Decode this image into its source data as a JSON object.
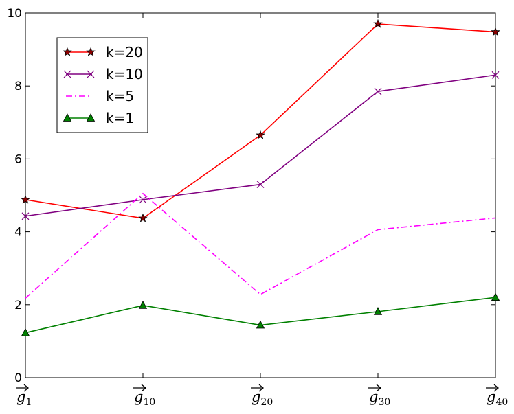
{
  "chart_data": {
    "type": "line",
    "categories": [
      {
        "base": "g",
        "sub": "1"
      },
      {
        "base": "g",
        "sub": "10"
      },
      {
        "base": "g",
        "sub": "20"
      },
      {
        "base": "g",
        "sub": "30"
      },
      {
        "base": "g",
        "sub": "40"
      }
    ],
    "ylim": [
      0,
      10
    ],
    "yticks": [
      "0",
      "2",
      "4",
      "6",
      "8",
      "10"
    ],
    "grid": false,
    "legend_position": "upper-left",
    "series": [
      {
        "name": "k=20",
        "color": "#ff0000",
        "marker": "star",
        "marker_color": "#8b0000",
        "line": "solid",
        "values": [
          4.88,
          4.37,
          6.65,
          9.7,
          9.48
        ]
      },
      {
        "name": "k=10",
        "color": "#800080",
        "marker": "x",
        "marker_color": "#800080",
        "line": "solid",
        "values": [
          4.43,
          4.88,
          5.3,
          7.85,
          8.3
        ]
      },
      {
        "name": "k=5",
        "color": "#ff00ff",
        "marker": "none",
        "marker_color": "#ff00ff",
        "line": "dashdot",
        "values": [
          2.18,
          5.05,
          2.28,
          4.06,
          4.38
        ]
      },
      {
        "name": "k=1",
        "color": "#008000",
        "marker": "triangle",
        "marker_color": "#008000",
        "line": "solid",
        "values": [
          1.23,
          1.98,
          1.44,
          1.81,
          2.2
        ]
      }
    ]
  }
}
